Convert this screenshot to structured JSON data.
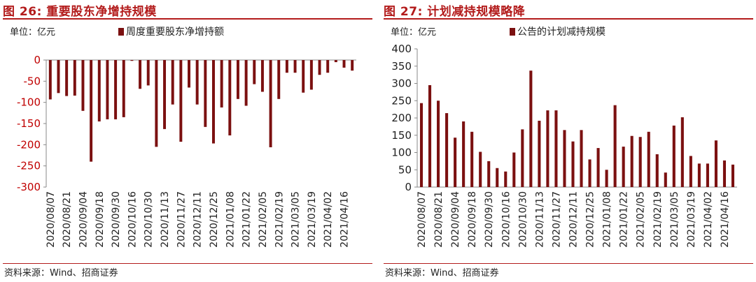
{
  "charts": [
    {
      "fig_title": "图 26:  重要股东净增持规模",
      "source": "资料来源：Wind、招商证券",
      "unit_label": "单位：亿元",
      "chart_data": {
        "type": "bar",
        "legend": "周度重要股东净增持额",
        "legend_position": "top-center",
        "ylim": [
          -300,
          0
        ],
        "yticks": [
          0,
          -50,
          -100,
          -150,
          -200,
          -250,
          -300
        ],
        "ytick_color": "#c00000",
        "grid": false,
        "bar_color": "#7b1010",
        "xtick_labels": [
          "2020/08/07",
          "2020/08/21",
          "2020/09/04",
          "2020/09/18",
          "2020/09/30",
          "2020/10/16",
          "2020/10/30",
          "2020/11/13",
          "2020/11/27",
          "2020/12/11",
          "2020/12/25",
          "2021/01/08",
          "2021/01/22",
          "2021/02/05",
          "2021/02/19",
          "2021/03/05",
          "2021/03/19",
          "2021/04/02",
          "2021/04/16"
        ],
        "values": [
          -93,
          -78,
          -85,
          -84,
          -120,
          -240,
          -145,
          -140,
          -140,
          -135,
          -2,
          -68,
          -60,
          -205,
          -163,
          -105,
          -193,
          -65,
          -105,
          -158,
          -197,
          -112,
          -178,
          -92,
          -108,
          -57,
          -75,
          -206,
          -92,
          -30,
          -30,
          -77,
          -70,
          -35,
          -30,
          -5,
          -18,
          -25
        ]
      }
    },
    {
      "fig_title": "图 27:  计划减持规模略降",
      "source": "资料来源：Wind、招商证券",
      "unit_label": "单位：亿元",
      "chart_data": {
        "type": "bar",
        "legend": "公告的计划减持规模",
        "legend_position": "top-center",
        "ylim": [
          0,
          400
        ],
        "yticks": [
          0,
          50,
          100,
          150,
          200,
          250,
          300,
          350,
          400
        ],
        "ytick_color": "#222222",
        "grid": false,
        "bar_color": "#7b1010",
        "xtick_labels": [
          "2020/08/07",
          "2020/08/21",
          "2020/09/04",
          "2020/09/18",
          "2020/09/30",
          "2020/10/16",
          "2020/10/30",
          "2020/11/13",
          "2020/11/27",
          "2020/12/11",
          "2020/12/25",
          "2021/01/08",
          "2021/01/22",
          "2021/02/05",
          "2021/02/19",
          "2021/03/05",
          "2021/03/19",
          "2021/04/02",
          "2021/04/16"
        ],
        "values": [
          243,
          295,
          250,
          214,
          143,
          190,
          160,
          102,
          75,
          55,
          45,
          100,
          167,
          337,
          192,
          222,
          222,
          165,
          132,
          165,
          80,
          113,
          50,
          237,
          117,
          148,
          145,
          160,
          95,
          42,
          178,
          202,
          90,
          68,
          68,
          135,
          77,
          65
        ]
      }
    }
  ]
}
